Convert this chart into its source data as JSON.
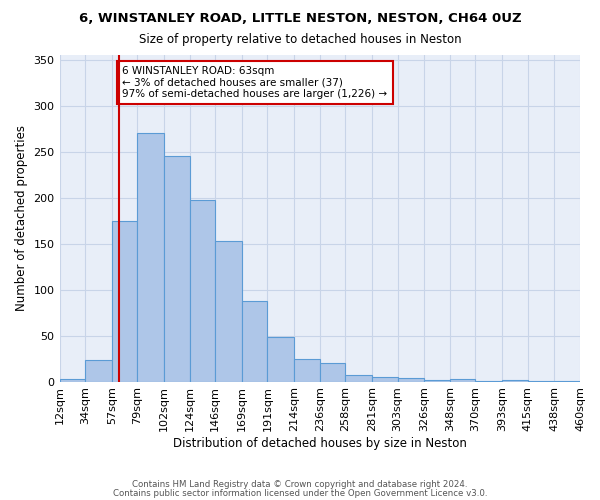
{
  "title": "6, WINSTANLEY ROAD, LITTLE NESTON, NESTON, CH64 0UZ",
  "subtitle": "Size of property relative to detached houses in Neston",
  "xlabel": "Distribution of detached houses by size in Neston",
  "ylabel": "Number of detached properties",
  "bin_labels": [
    "12sqm",
    "34sqm",
    "57sqm",
    "79sqm",
    "102sqm",
    "124sqm",
    "146sqm",
    "169sqm",
    "191sqm",
    "214sqm",
    "236sqm",
    "258sqm",
    "281sqm",
    "303sqm",
    "326sqm",
    "348sqm",
    "370sqm",
    "393sqm",
    "415sqm",
    "438sqm",
    "460sqm"
  ],
  "bin_edges": [
    12,
    34,
    57,
    79,
    102,
    124,
    146,
    169,
    191,
    214,
    236,
    258,
    281,
    303,
    326,
    348,
    370,
    393,
    415,
    438,
    460
  ],
  "heights": [
    3,
    23,
    175,
    270,
    245,
    197,
    153,
    88,
    48,
    25,
    20,
    7,
    5,
    4,
    2,
    3,
    1,
    2,
    1,
    1
  ],
  "property_sqm": 63,
  "annotation_text": "6 WINSTANLEY ROAD: 63sqm\n← 3% of detached houses are smaller (37)\n97% of semi-detached houses are larger (1,226) →",
  "bar_color": "#aec6e8",
  "bar_edge_color": "#5b9bd5",
  "vline_color": "#cc0000",
  "annotation_box_edge": "#cc0000",
  "annotation_box_face": "#ffffff",
  "grid_color": "#c8d4e8",
  "background_color": "#e8eef8",
  "footer1": "Contains HM Land Registry data © Crown copyright and database right 2024.",
  "footer2": "Contains public sector information licensed under the Open Government Licence v3.0."
}
